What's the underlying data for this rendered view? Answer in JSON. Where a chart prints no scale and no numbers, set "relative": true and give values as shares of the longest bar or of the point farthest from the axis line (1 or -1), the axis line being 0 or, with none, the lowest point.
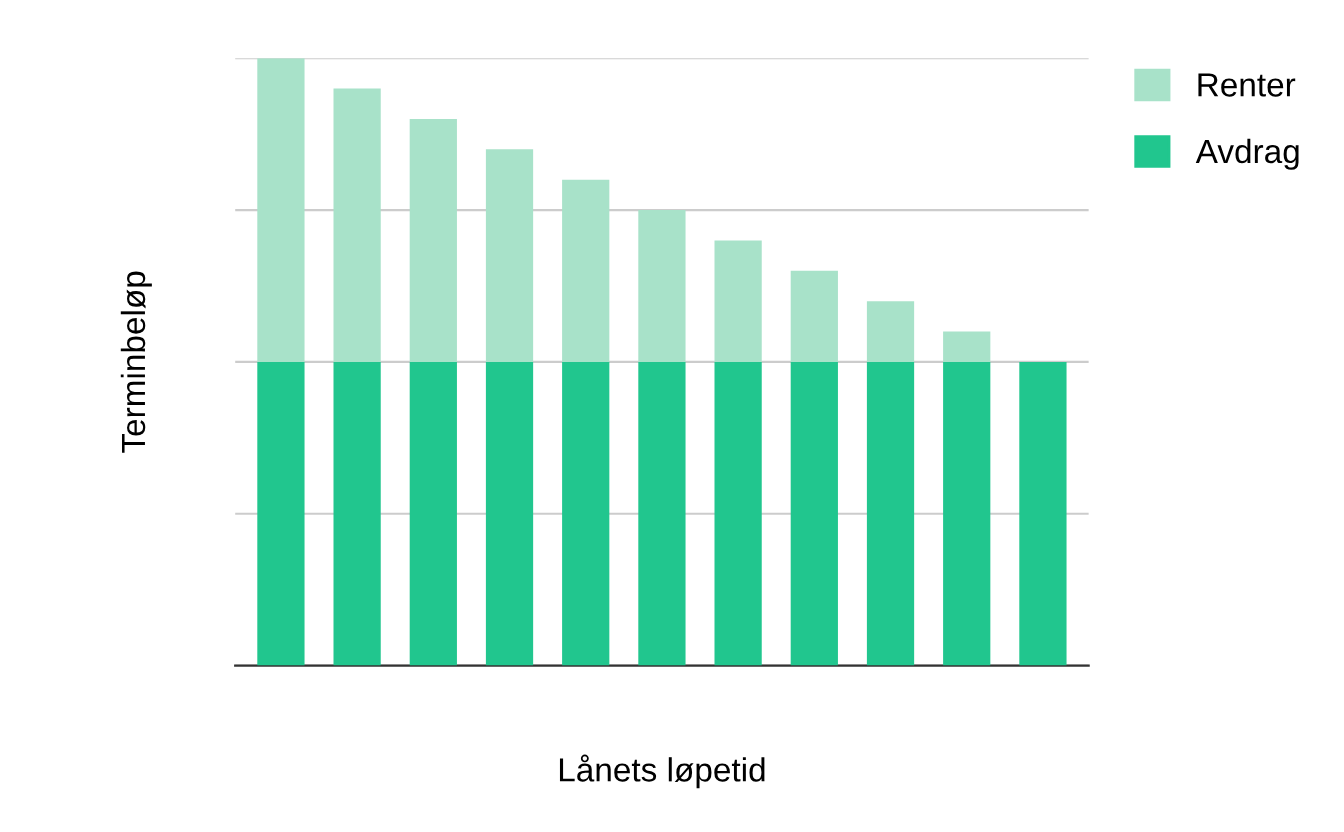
{
  "chart_data": {
    "type": "bar",
    "stacked": true,
    "relative": true,
    "xlabel": "Lånets løpetid",
    "ylabel": "Terminbeløp",
    "categories": [
      null,
      null,
      null,
      null,
      null,
      null,
      null,
      null,
      null,
      null,
      null
    ],
    "series": [
      {
        "name": "Avdrag",
        "color": "#21c68e",
        "values": [
          0.5,
          0.5,
          0.5,
          0.5,
          0.5,
          0.5,
          0.5,
          0.5,
          0.5,
          0.5,
          0.5
        ]
      },
      {
        "name": "Renter",
        "color": "#a8e2c9",
        "values": [
          0.5,
          0.45,
          0.4,
          0.35,
          0.3,
          0.25,
          0.2,
          0.15,
          0.1,
          0.05,
          0
        ]
      }
    ],
    "grid": "y",
    "legend": "top right",
    "tick_labels": false
  }
}
